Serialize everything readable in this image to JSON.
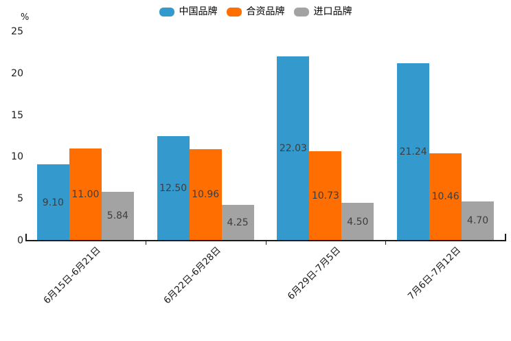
{
  "chart_data": {
    "type": "bar",
    "title": "",
    "xlabel": "",
    "ylabel": "%",
    "ylim": [
      0,
      25
    ],
    "yticks": [
      0,
      5,
      10,
      15,
      20,
      25
    ],
    "grid": false,
    "legend_position": "top-center",
    "categories": [
      "6月15日-6月21日",
      "6月22日-6月28日",
      "6月29日-7月5日",
      "7月6日-7月12日"
    ],
    "series": [
      {
        "name": "中国品牌",
        "color": "#3499cc",
        "values": [
          9.1,
          12.5,
          22.03,
          21.24
        ]
      },
      {
        "name": "合资品牌",
        "color": "#fe6e00",
        "values": [
          11.0,
          10.96,
          10.73,
          10.46
        ]
      },
      {
        "name": "进口品牌",
        "color": "#a3a3a3",
        "values": [
          5.84,
          4.25,
          4.5,
          4.7
        ]
      }
    ],
    "value_label_decimals": 2
  },
  "colors": {
    "axis": "#1a1a1a",
    "value_label_text": "#3d3d3d",
    "background": "#ffffff"
  }
}
